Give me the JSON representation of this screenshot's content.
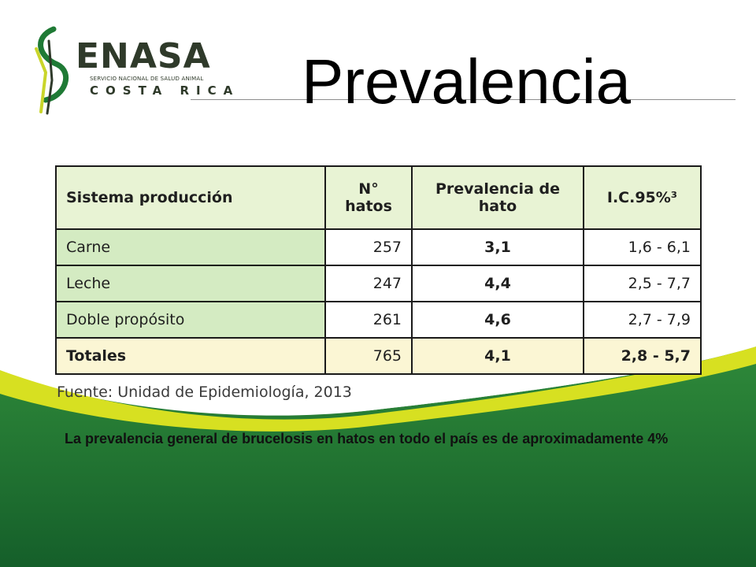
{
  "logo": {
    "name": "ENASA",
    "subtitle": "SERVICIO NACIONAL DE SALUD ANIMAL",
    "country": "COSTA RICA"
  },
  "title": "Prevalencia",
  "table": {
    "headers": [
      "Sistema producción",
      "N°\nhatos",
      "Prevalencia de\nhato",
      "I.C.95%³"
    ],
    "rows": [
      [
        "Carne",
        "257",
        "3,1",
        "1,6 - 6,1"
      ],
      [
        "Leche",
        "247",
        "4,4",
        "2,5 - 7,7"
      ],
      [
        "Doble propósito",
        "261",
        "4,6",
        "2,7 - 7,9"
      ]
    ],
    "totals": [
      "Totales",
      "765",
      "4,1",
      "2,8 - 5,7"
    ]
  },
  "source": "Fuente: Unidad de Epidemiología, 2013",
  "conclusion": "La prevalencia general de brucelosis en hatos en todo el país es de aproximadamente 4%",
  "colors": {
    "green_dark": "#1e6f32",
    "yellow_band": "#d7e021",
    "header_fill": "#e8f3d4",
    "first_col_fill": "#d4ebc2",
    "totals_fill": "#fbf6d4"
  }
}
